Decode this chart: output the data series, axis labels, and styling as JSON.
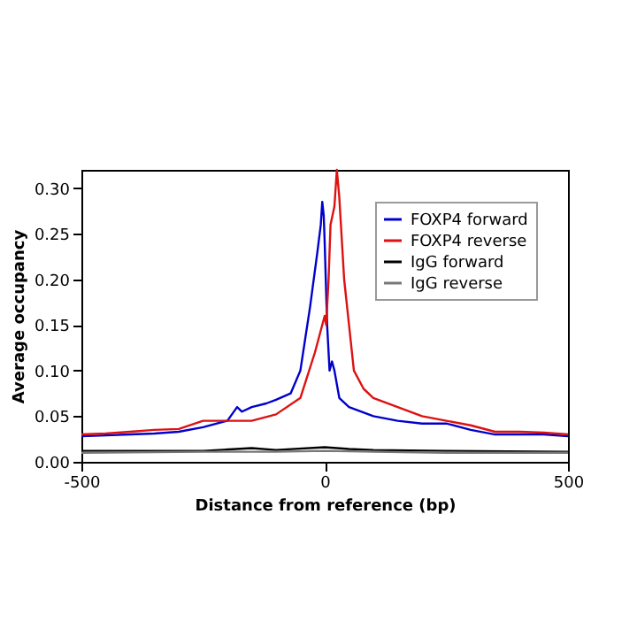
{
  "chart_data": {
    "type": "line",
    "xlabel": "Distance from reference (bp)",
    "ylabel": "Average occupancy",
    "xlim": [
      -500,
      500
    ],
    "xticks": [
      -500,
      0,
      500
    ],
    "ylim": [
      0,
      0.32
    ],
    "yticks": [
      {
        "value": 0,
        "label": "0.00"
      },
      0.05,
      {
        "value": 0.1,
        "label": "0.10"
      },
      0.15,
      {
        "value": 0.2,
        "label": "0.20"
      },
      0.25,
      {
        "value": 0.3,
        "label": "0.30"
      }
    ],
    "legend": "top right",
    "grid": false,
    "marker": "none",
    "line_style": "solid",
    "series": [
      {
        "name": "FOXP4 forward",
        "color": "#0000cc",
        "x": [
          -500,
          -450,
          -400,
          -350,
          -300,
          -250,
          -200,
          -180,
          -170,
          -150,
          -120,
          -100,
          -70,
          -50,
          -30,
          -15,
          -8,
          -5,
          -2,
          0,
          5,
          10,
          15,
          20,
          30,
          50,
          100,
          150,
          200,
          250,
          300,
          350,
          400,
          450,
          500
        ],
        "values": [
          0.028,
          0.029,
          0.03,
          0.031,
          0.033,
          0.038,
          0.045,
          0.06,
          0.055,
          0.06,
          0.064,
          0.068,
          0.075,
          0.1,
          0.17,
          0.23,
          0.26,
          0.285,
          0.27,
          0.24,
          0.15,
          0.1,
          0.11,
          0.1,
          0.07,
          0.06,
          0.05,
          0.045,
          0.042,
          0.042,
          0.035,
          0.03,
          0.03,
          0.03,
          0.028
        ]
      },
      {
        "name": "FOXP4 reverse",
        "color": "#dd1111",
        "x": [
          -500,
          -450,
          -400,
          -350,
          -300,
          -250,
          -200,
          -150,
          -100,
          -50,
          -20,
          -5,
          0,
          3,
          8,
          12,
          20,
          25,
          30,
          40,
          50,
          60,
          80,
          100,
          150,
          200,
          250,
          300,
          350,
          400,
          450,
          500
        ],
        "values": [
          0.03,
          0.031,
          0.033,
          0.035,
          0.036,
          0.045,
          0.045,
          0.045,
          0.052,
          0.07,
          0.12,
          0.15,
          0.16,
          0.15,
          0.2,
          0.26,
          0.28,
          0.32,
          0.29,
          0.2,
          0.15,
          0.1,
          0.08,
          0.07,
          0.06,
          0.05,
          0.045,
          0.04,
          0.033,
          0.033,
          0.032,
          0.03
        ]
      },
      {
        "name": "IgG forward",
        "color": "#000000",
        "x": [
          -500,
          -250,
          -150,
          -100,
          0,
          50,
          100,
          250,
          500
        ],
        "values": [
          0.012,
          0.012,
          0.015,
          0.013,
          0.016,
          0.014,
          0.013,
          0.012,
          0.011
        ]
      },
      {
        "name": "IgG reverse",
        "color": "#777777",
        "x": [
          -500,
          -250,
          -100,
          0,
          100,
          250,
          500
        ],
        "values": [
          0.01,
          0.011,
          0.011,
          0.012,
          0.011,
          0.01,
          0.01
        ]
      }
    ]
  }
}
